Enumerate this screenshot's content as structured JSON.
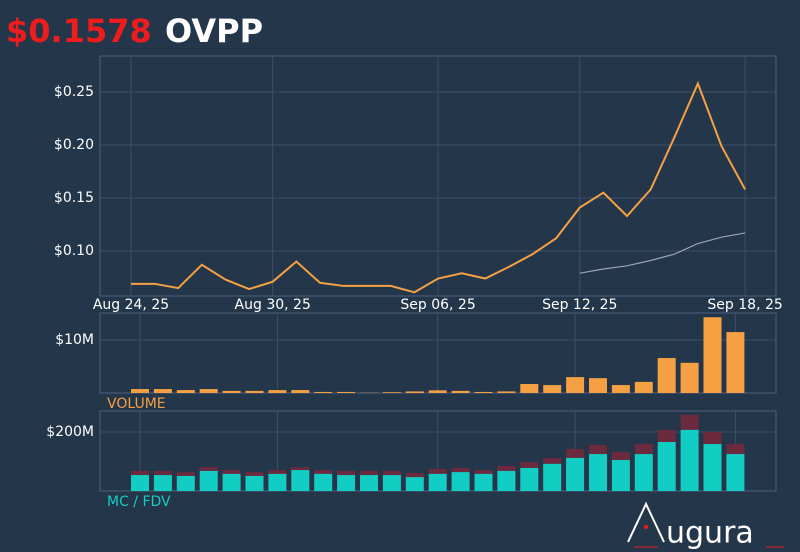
{
  "price": "$0.1578",
  "ticker": "OVPP",
  "logo": "ugura",
  "chart_data": [
    {
      "type": "line",
      "categories": [
        "Aug 24, 25",
        null,
        null,
        null,
        null,
        null,
        "Aug 30, 25",
        null,
        null,
        null,
        null,
        null,
        null,
        "Sep 06, 25",
        null,
        null,
        null,
        null,
        null,
        "Sep 12, 25",
        null,
        null,
        null,
        null,
        null,
        null,
        "Sep 18, 25"
      ],
      "series": [
        {
          "color": "#f5a043",
          "values": [
            0.069,
            0.069,
            0.065,
            0.087,
            0.073,
            0.064,
            0.071,
            0.09,
            0.07,
            0.067,
            0.067,
            0.067,
            0.061,
            0.074,
            0.079,
            0.074,
            0.085,
            0.097,
            0.112,
            0.141,
            0.155,
            0.133,
            0.158,
            0.207,
            0.258,
            0.199,
            0.158
          ]
        },
        {
          "color": "#9aa4b2",
          "values": [
            null,
            null,
            null,
            null,
            null,
            null,
            null,
            null,
            null,
            null,
            null,
            null,
            null,
            null,
            null,
            null,
            null,
            null,
            null,
            0.079,
            0.083,
            0.086,
            0.091,
            0.097,
            0.107,
            0.113,
            0.117
          ]
        }
      ],
      "ylim": [
        0.0575,
        0.284
      ],
      "yticks": [
        {
          "value": 0.1,
          "label": "$0.10"
        },
        {
          "value": 0.15,
          "label": "$0.15"
        },
        {
          "value": 0.2,
          "label": "$0.20"
        },
        {
          "value": 0.25,
          "label": "$0.25"
        }
      ],
      "grid": true
    },
    {
      "type": "bar",
      "label": "VOLUME",
      "series": [
        {
          "color": "#f5a043",
          "values": [
            750000,
            750000,
            550000,
            750000,
            400000,
            400000,
            550000,
            550000,
            200000,
            200000,
            50000,
            150000,
            300000,
            500000,
            400000,
            200000,
            300000,
            1700000,
            1500000,
            3000000,
            2800000,
            1500000,
            2100000,
            6600000,
            5700000,
            14300000,
            11500000
          ]
        }
      ],
      "ylim": [
        0,
        15100000
      ],
      "yticks": [
        {
          "value": 10000000,
          "label": "$10M"
        }
      ],
      "grid": true
    },
    {
      "type": "bar",
      "label": "MC / FDV",
      "series": [
        {
          "color": "#6b2a3e",
          "values": [
            68000000,
            68000000,
            64000000,
            81000000,
            71000000,
            64000000,
            71000000,
            81000000,
            71000000,
            68000000,
            68000000,
            68000000,
            61000000,
            75000000,
            78000000,
            71000000,
            85000000,
            98000000,
            112000000,
            142000000,
            156000000,
            132000000,
            159000000,
            207000000,
            258000000,
            200000000,
            159000000
          ]
        },
        {
          "color": "#12cdc4",
          "values": [
            54000000,
            54000000,
            51000000,
            68000000,
            58000000,
            51000000,
            58000000,
            71000000,
            58000000,
            54000000,
            54000000,
            54000000,
            47000000,
            58000000,
            64000000,
            58000000,
            68000000,
            78000000,
            92000000,
            112000000,
            125000000,
            105000000,
            125000000,
            166000000,
            207000000,
            159000000,
            125000000
          ]
        }
      ],
      "ylim": [
        0,
        271000000
      ],
      "yticks": [
        {
          "value": 200000000,
          "label": "$200M"
        }
      ],
      "grid": true
    }
  ]
}
